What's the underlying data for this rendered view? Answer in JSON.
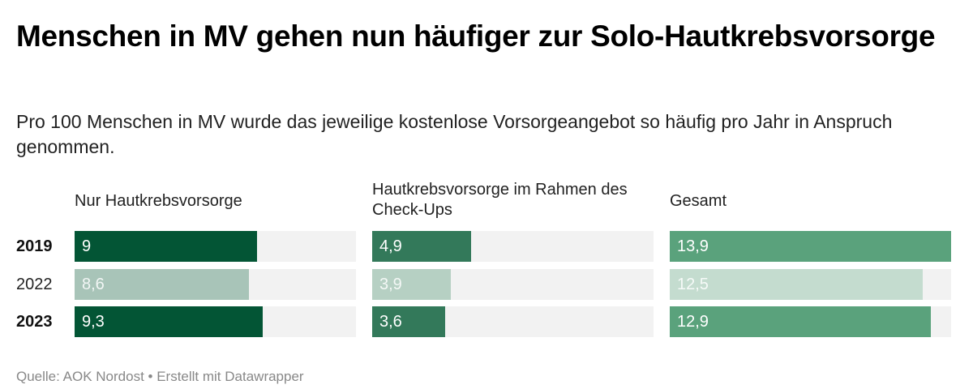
{
  "title": "Menschen in MV gehen nun häufiger zur Solo-Hautkrebsvorsorge",
  "subtitle": "Pro 100 Menschen in MV wurde das jeweilige kostenlose Vorsorgeangebot so häufig pro Jahr in Anspruch genommen.",
  "footer": {
    "text": "Quelle: AOK Nordost • Erstellt mit Datawrapper"
  },
  "chart_data": {
    "type": "bar",
    "orientation": "horizontal",
    "layout": "small-multiples",
    "title": "Menschen in MV gehen nun häufiger zur Solo-Hautkrebsvorsorge",
    "subtitle": "Pro 100 Menschen in MV wurde das jeweilige kostenlose Vorsorgeangebot so häufig pro Jahr in Anspruch genommen.",
    "source": "AOK Nordost",
    "categories": [
      "2019",
      "2022",
      "2023"
    ],
    "category_bold": [
      true,
      false,
      true
    ],
    "xlim": [
      0,
      13.9
    ],
    "grid": false,
    "series": [
      {
        "name": "Nur Hautkrebsvorsorge",
        "values": [
          9,
          8.6,
          9.3
        ],
        "labels": [
          "9",
          "8,6",
          "9,3"
        ],
        "color": "#035535",
        "muted_color": "#a8c4b8"
      },
      {
        "name": "Hautkrebsvorsorge im Rahmen des Check-Ups",
        "values": [
          4.9,
          3.9,
          3.6
        ],
        "labels": [
          "4,9",
          "3,9",
          "3,6"
        ],
        "color": "#33795a",
        "muted_color": "#b6d0c3"
      },
      {
        "name": "Gesamt",
        "values": [
          13.9,
          12.5,
          12.9
        ],
        "labels": [
          "13,9",
          "12,5",
          "12,9"
        ],
        "color": "#5aa27c",
        "muted_color": "#c4dccf"
      }
    ],
    "track_color": "#f2f2f2",
    "muted_category": "2022"
  }
}
